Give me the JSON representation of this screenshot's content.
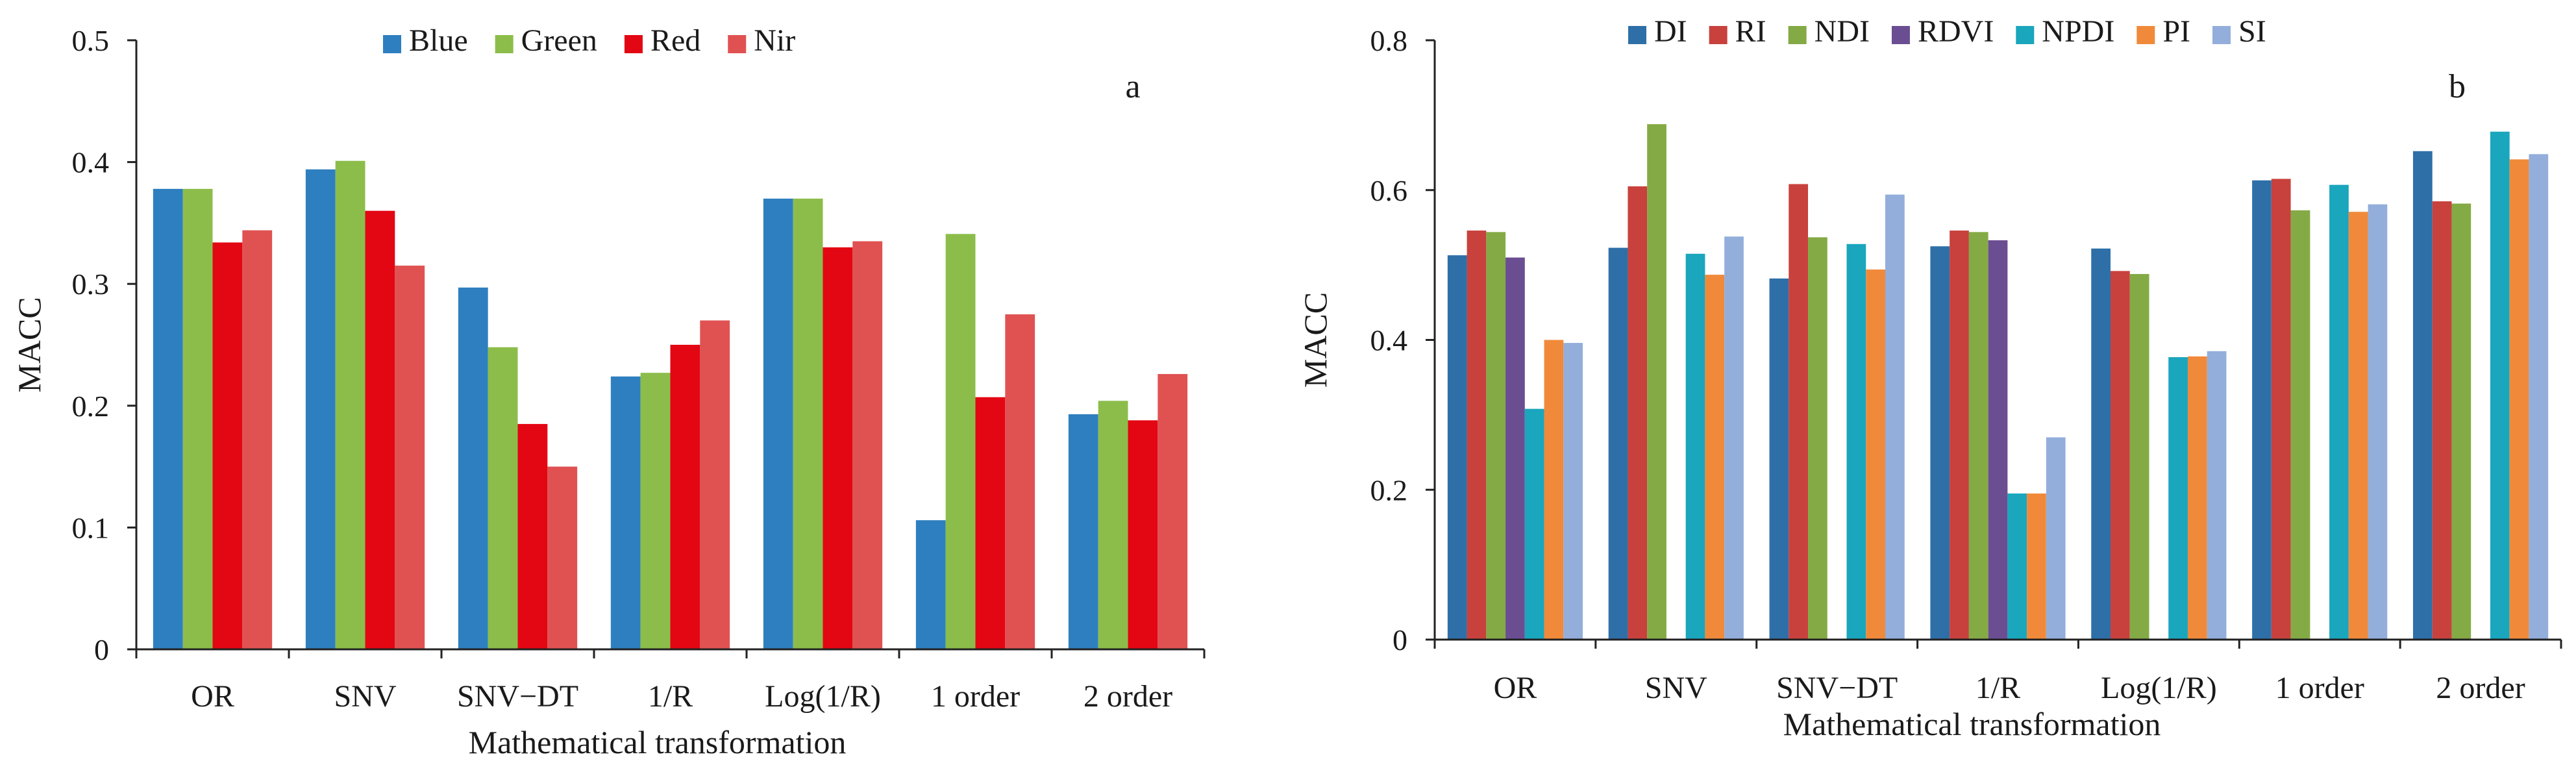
{
  "chart_data": [
    {
      "type": "bar",
      "panel_label": "a",
      "title": "",
      "xlabel": "Mathematical transformation",
      "ylabel": "MACC",
      "ylim": [
        0,
        0.5
      ],
      "yticks": [
        0,
        0.1,
        0.2,
        0.3,
        0.4,
        0.5
      ],
      "ytick_labels": [
        "0",
        "0.1",
        "0.2",
        "0.3",
        "0.4",
        "0.5"
      ],
      "categories": [
        "OR",
        "SNV",
        "SNV−DT",
        "1/R",
        "Log(1/R)",
        "1 order",
        "2 order"
      ],
      "legend_position": "top",
      "series": [
        {
          "name": "Blue",
          "color": "#2e7fbf",
          "values": [
            0.378,
            0.394,
            0.297,
            0.224,
            0.37,
            0.106,
            0.193
          ]
        },
        {
          "name": "Green",
          "color": "#8cbd4b",
          "values": [
            0.378,
            0.401,
            0.248,
            0.227,
            0.37,
            0.341,
            0.204
          ]
        },
        {
          "name": "Red",
          "color": "#e30613",
          "values": [
            0.334,
            0.36,
            0.185,
            0.25,
            0.33,
            0.207,
            0.188
          ]
        },
        {
          "name": "Nir",
          "color": "#e05252",
          "values": [
            0.344,
            0.315,
            0.15,
            0.27,
            0.335,
            0.275,
            0.226
          ]
        }
      ]
    },
    {
      "type": "bar",
      "panel_label": "b",
      "title": "",
      "xlabel": "Mathematical transformation",
      "ylabel": "MACC",
      "ylim": [
        0,
        0.8
      ],
      "yticks": [
        0,
        0.2,
        0.4,
        0.6,
        0.8
      ],
      "ytick_labels": [
        "0",
        "0.2",
        "0.4",
        "0.6",
        "0.8"
      ],
      "categories": [
        "OR",
        "SNV",
        "SNV−DT",
        "1/R",
        "Log(1/R)",
        "1 order",
        "2 order"
      ],
      "legend_position": "top",
      "series": [
        {
          "name": "DI",
          "color": "#2e6fa8",
          "values": [
            0.513,
            0.523,
            0.482,
            0.525,
            0.522,
            0.613,
            0.652
          ]
        },
        {
          "name": "RI",
          "color": "#c8413d",
          "values": [
            0.546,
            0.605,
            0.608,
            0.546,
            0.492,
            0.615,
            0.585
          ]
        },
        {
          "name": "NDI",
          "color": "#84aa45",
          "values": [
            0.544,
            0.688,
            0.537,
            0.544,
            0.488,
            0.573,
            0.582
          ]
        },
        {
          "name": "RDVI",
          "color": "#6b4e92",
          "values": [
            0.51,
            null,
            null,
            0.533,
            null,
            null,
            null
          ]
        },
        {
          "name": "NPDI",
          "color": "#1aa6bd",
          "values": [
            0.308,
            0.515,
            0.528,
            0.195,
            0.377,
            0.607,
            0.678
          ]
        },
        {
          "name": "PI",
          "color": "#f08a3a",
          "values": [
            0.4,
            0.487,
            0.494,
            0.195,
            0.378,
            0.571,
            0.641
          ]
        },
        {
          "name": "SI",
          "color": "#93aedb",
          "values": [
            0.396,
            0.538,
            0.594,
            0.27,
            0.385,
            0.581,
            0.648
          ]
        }
      ]
    }
  ]
}
